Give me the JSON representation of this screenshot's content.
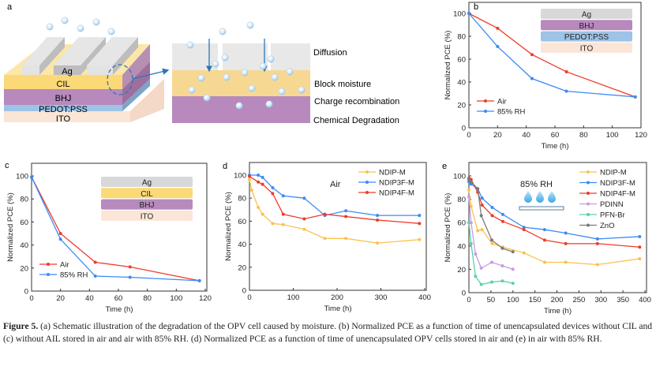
{
  "schematic": {
    "panel_label": "a",
    "stack_layers": [
      "Ag",
      "CIL",
      "BHJ",
      "PEDOT:PSS",
      "ITO"
    ],
    "mechanisms": [
      "Diffusion",
      "Block moisture",
      "Charge recombination",
      "Chemical Degradation"
    ]
  },
  "colors": {
    "air": "#ef3b2c",
    "rh": "#3b8bf5",
    "ndip_m": "#fcc14e",
    "ndip3f_m": "#3b8bf5",
    "ndip4f_m": "#ef3b2c",
    "pdinn": "#c89be2",
    "pfn_br": "#5ccfae",
    "zno": "#7a7a7a",
    "ag": "#d8d8d8",
    "cil": "#fbd977",
    "bhj": "#b789bd",
    "pedot": "#9dc3e6",
    "ito": "#fbe5d6"
  },
  "chart_data": [
    {
      "panel": "b",
      "type": "line",
      "xlabel": "Time (h)",
      "ylabel": "Normalized PCE (%)",
      "xlim": [
        0,
        120
      ],
      "ylim": [
        0,
        110
      ],
      "xticks": [
        0,
        20,
        40,
        60,
        80,
        100,
        120
      ],
      "yticks": [
        0,
        20,
        40,
        60,
        80,
        100
      ],
      "grid": false,
      "legend": "bottom-left",
      "inset_layers": [
        "Ag",
        "BHJ",
        "PEDOT:PSS",
        "ITO"
      ],
      "series": [
        {
          "name": "Air",
          "color": "#ef3b2c",
          "x": [
            0,
            20,
            44,
            68,
            116
          ],
          "y": [
            100,
            87,
            64,
            49,
            27
          ]
        },
        {
          "name": "85% RH",
          "color": "#3b8bf5",
          "x": [
            0,
            20,
            44,
            68,
            116
          ],
          "y": [
            100,
            71,
            43,
            32,
            27
          ]
        }
      ]
    },
    {
      "panel": "c",
      "type": "line",
      "xlabel": "Time (h)",
      "ylabel": "Normalized PCE (%)",
      "xlim": [
        0,
        120
      ],
      "ylim": [
        0,
        110
      ],
      "xticks": [
        0,
        20,
        40,
        60,
        80,
        100,
        120
      ],
      "yticks": [
        0,
        20,
        40,
        60,
        80,
        100
      ],
      "grid": false,
      "legend": "bottom-left",
      "inset_layers": [
        "Ag",
        "CIL",
        "BHJ",
        "ITO"
      ],
      "series": [
        {
          "name": "Air",
          "color": "#ef3b2c",
          "x": [
            0,
            20,
            44,
            68,
            116
          ],
          "y": [
            99,
            50,
            25,
            21,
            9
          ]
        },
        {
          "name": "85% RH",
          "color": "#3b8bf5",
          "x": [
            0,
            20,
            44,
            68,
            116
          ],
          "y": [
            99,
            45,
            13,
            12,
            9
          ]
        }
      ]
    },
    {
      "panel": "d",
      "type": "line",
      "xlabel": "Time (h)",
      "ylabel": "Normalized PCE (%)",
      "xlim": [
        0,
        400
      ],
      "ylim": [
        0,
        110
      ],
      "xticks": [
        0,
        100,
        200,
        300,
        400
      ],
      "yticks": [
        0,
        20,
        40,
        60,
        80,
        100
      ],
      "grid": false,
      "legend": "top-right",
      "annotation": "Air",
      "series": [
        {
          "name": "NDIP-M",
          "color": "#fcc14e",
          "x": [
            0,
            5,
            20,
            30,
            53,
            77,
            125,
            172,
            220,
            292,
            388
          ],
          "y": [
            96,
            87,
            72,
            66,
            58,
            57,
            53,
            45,
            45,
            41,
            44
          ]
        },
        {
          "name": "NDIP3F-M",
          "color": "#3b8bf5",
          "x": [
            0,
            20,
            30,
            53,
            77,
            125,
            172,
            220,
            292,
            388
          ],
          "y": [
            100,
            100,
            98,
            89,
            82,
            80,
            65,
            69,
            65,
            65
          ]
        },
        {
          "name": "NDIP4F-M",
          "color": "#ef3b2c",
          "x": [
            0,
            20,
            30,
            53,
            77,
            125,
            172,
            220,
            292,
            388
          ],
          "y": [
            99,
            94,
            92,
            84,
            66,
            62,
            66,
            64,
            61,
            58
          ]
        }
      ]
    },
    {
      "panel": "e",
      "type": "line",
      "xlabel": "Time (h)",
      "ylabel": "Normalized PCE (%)",
      "xlim": [
        0,
        400
      ],
      "ylim": [
        0,
        110
      ],
      "xticks": [
        0,
        50,
        100,
        150,
        200,
        250,
        300,
        350,
        400
      ],
      "yticks": [
        0,
        20,
        40,
        60,
        80,
        100
      ],
      "grid": false,
      "legend": "top-right",
      "annotation": "85% RH",
      "series": [
        {
          "name": "NDIP-M",
          "color": "#fcc14e",
          "x": [
            0,
            5,
            20,
            30,
            53,
            77,
            125,
            172,
            220,
            292,
            388
          ],
          "y": [
            88,
            74,
            53,
            54,
            42,
            39,
            34,
            26,
            26,
            24,
            29
          ]
        },
        {
          "name": "NDIP3F-M",
          "color": "#3b8bf5",
          "x": [
            0,
            5,
            20,
            30,
            53,
            77,
            125,
            172,
            220,
            292,
            388
          ],
          "y": [
            95,
            93,
            89,
            81,
            73,
            67,
            56,
            54,
            51,
            46,
            48
          ]
        },
        {
          "name": "NDIP4F-M",
          "color": "#ef3b2c",
          "x": [
            0,
            5,
            20,
            30,
            53,
            77,
            125,
            172,
            220,
            292,
            388
          ],
          "y": [
            98,
            97,
            86,
            75,
            66,
            61,
            54,
            45,
            42,
            42,
            39
          ]
        },
        {
          "name": "PDINN",
          "color": "#c89be2",
          "x": [
            0,
            5,
            15,
            28,
            52,
            76,
            100
          ],
          "y": [
            82,
            60,
            33,
            21,
            26,
            23,
            20
          ]
        },
        {
          "name": "PFN-Br",
          "color": "#5ccfae",
          "x": [
            0,
            5,
            15,
            28,
            52,
            76,
            100
          ],
          "y": [
            60,
            42,
            14,
            7,
            9,
            10,
            8
          ]
        },
        {
          "name": "ZnO",
          "color": "#7a7a7a",
          "x": [
            0,
            5,
            20,
            28,
            52,
            76,
            100
          ],
          "y": [
            97,
            95,
            89,
            66,
            45,
            38,
            35
          ]
        }
      ]
    }
  ],
  "caption": {
    "label": "Figure 5.",
    "text": "(a) Schematic illustration of the degradation of the OPV cell caused by moisture. (b) Normalized PCE as a function of time of unencapsulated devices without CIL and (c) without AIL stored in air and air with 85% RH. (d) Normalized PCE as a function of time of unencapsulated OPV cells stored in air and (e) in air with 85% RH."
  }
}
